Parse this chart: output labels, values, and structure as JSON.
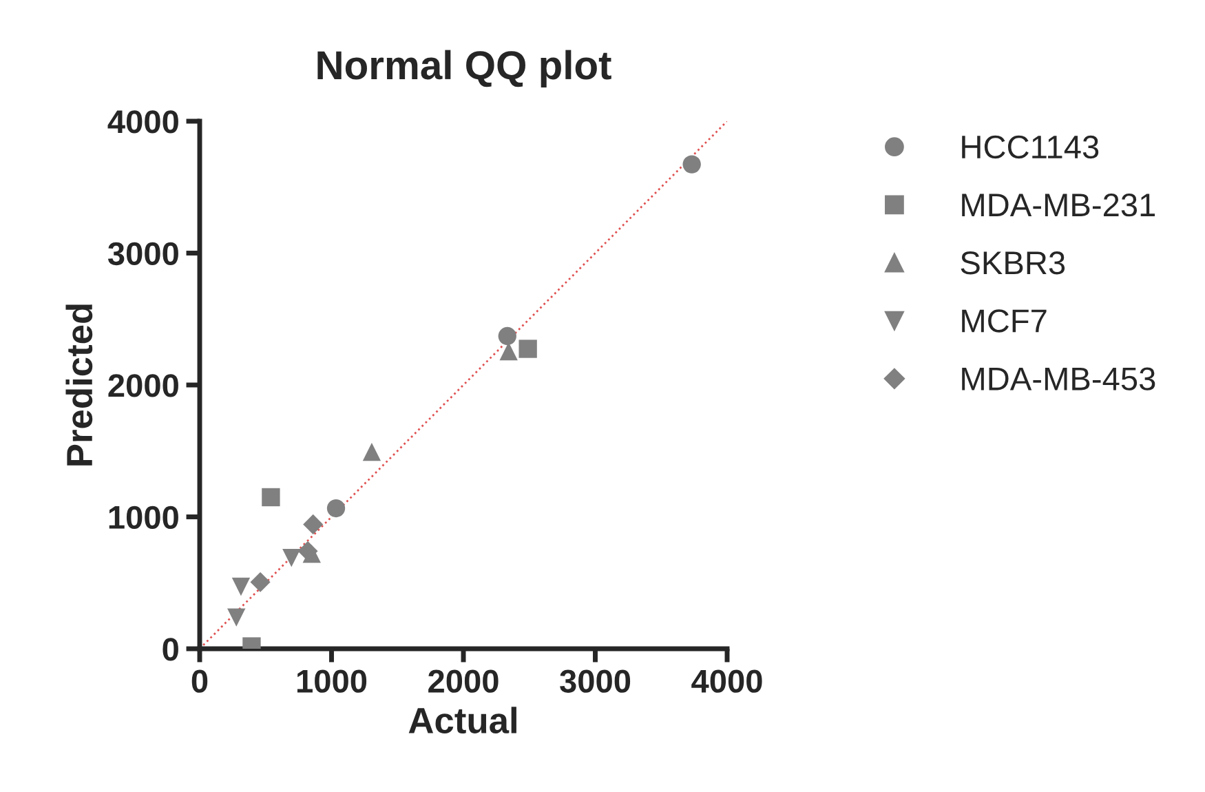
{
  "chart_data": {
    "type": "scatter",
    "title": "Normal QQ plot",
    "xlabel": "Actual",
    "ylabel": "Predicted",
    "xlim": [
      0,
      4000
    ],
    "ylim": [
      0,
      4000
    ],
    "xticks": [
      0,
      1000,
      2000,
      3000,
      4000
    ],
    "yticks": [
      0,
      1000,
      2000,
      3000,
      4000
    ],
    "grid": false,
    "legend": "right",
    "series": [
      {
        "name": "HCC1143",
        "color": "#808080",
        "marker": "circle",
        "x": [
          3732,
          2333,
          1034
        ],
        "values": [
          3673,
          2371,
          1065
        ]
      },
      {
        "name": "MDA-MB-231",
        "color": "#808080",
        "marker": "square",
        "x": [
          540,
          394,
          2489
        ],
        "values": [
          1149,
          18,
          2274
        ]
      },
      {
        "name": "SKBR3",
        "color": "#808080",
        "marker": "triangle",
        "x": [
          1305,
          2343,
          850
        ],
        "values": [
          1493,
          2256,
          720
        ]
      },
      {
        "name": "MCF7",
        "color": "#808080",
        "marker": "triangle_down",
        "x": [
          696,
          313,
          278
        ],
        "values": [
          689,
          470,
          237
        ]
      },
      {
        "name": "MDA-MB-453",
        "color": "#808080",
        "marker": "diamond",
        "x": [
          860,
          460,
          820
        ],
        "values": [
          943,
          505,
          740
        ]
      },
      {
        "type": "line",
        "color": "#e05050",
        "line_style": "dotted",
        "marker": "none",
        "x": [
          0,
          4000
        ],
        "values": [
          0,
          4000
        ]
      }
    ]
  }
}
